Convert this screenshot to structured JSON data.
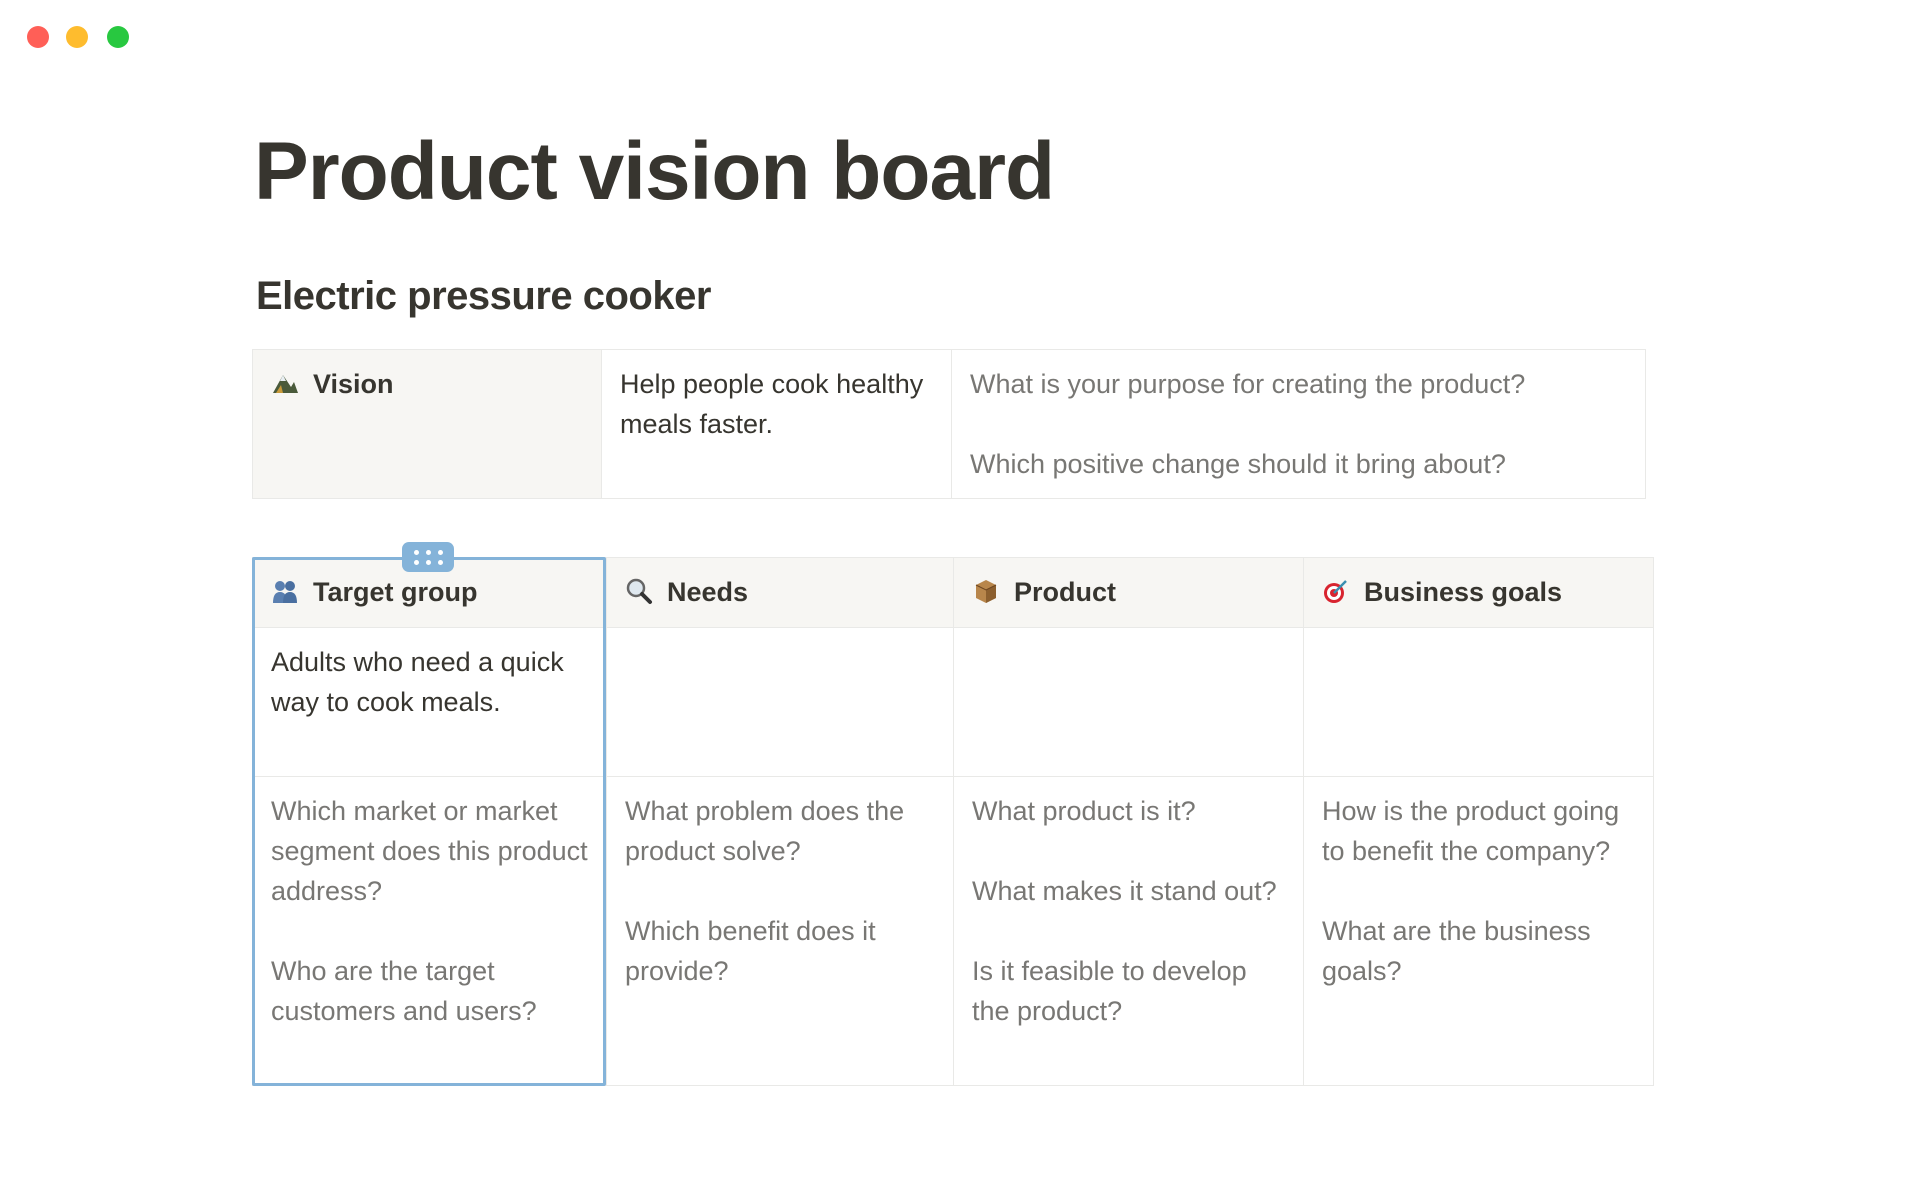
{
  "window": {
    "controls": [
      {
        "name": "close",
        "color": "#ff5f57"
      },
      {
        "name": "minimize",
        "color": "#febc2e"
      },
      {
        "name": "maximize",
        "color": "#28c840"
      }
    ]
  },
  "page": {
    "title": "Product vision board",
    "subtitle": "Electric pressure cooker"
  },
  "vision": {
    "icon": "mountain-icon",
    "label": "Vision",
    "value": "Help people cook healthy meals faster.",
    "prompts": [
      "What is your purpose for creating the product?",
      "Which positive change should it bring about?"
    ]
  },
  "board": {
    "columns": [
      {
        "icon": "people-icon",
        "label": "Target group",
        "value": "Adults who need a quick way to cook meals.",
        "prompts": [
          "Which market or market segment does this product address?",
          "Who are the target customers and users?"
        ]
      },
      {
        "icon": "magnifier-icon",
        "label": "Needs",
        "value": "",
        "prompts": [
          "What problem does the product solve?",
          "Which benefit does it provide?"
        ]
      },
      {
        "icon": "package-icon",
        "label": "Product",
        "value": "",
        "prompts": [
          "What product is it?",
          "What makes it stand out?",
          "Is it feasible to develop the product?"
        ]
      },
      {
        "icon": "target-icon",
        "label": "Business goals",
        "value": "",
        "prompts": [
          "How is the product going to benefit the company?",
          "What are the business goals?"
        ]
      }
    ]
  },
  "colors": {
    "text": "#37352f",
    "muted": "#787774",
    "header_bg": "#f7f6f3",
    "border": "#e9e9e7",
    "selection": "#84b3d9"
  }
}
